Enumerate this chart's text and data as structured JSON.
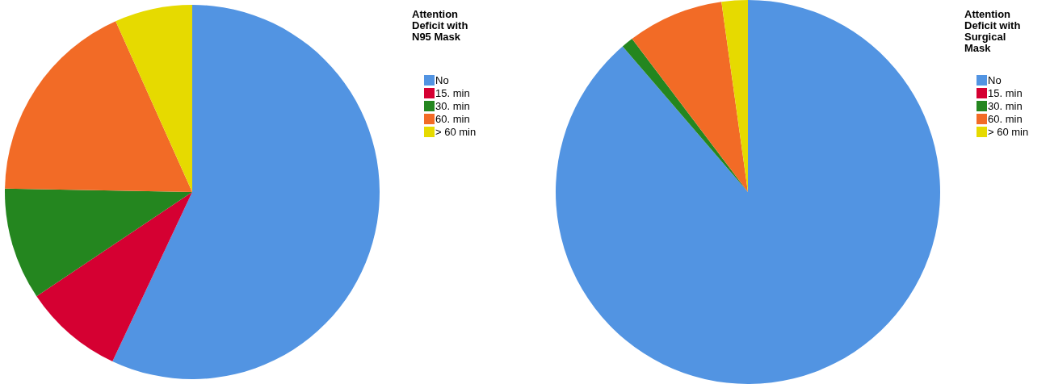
{
  "chart_data": [
    {
      "type": "pie",
      "legend_title": "Attention Deficit with N95 Mask",
      "legend": "top right",
      "categories": [
        "No",
        "15. min",
        "30. min",
        "60. min",
        "> 60 min"
      ],
      "values": [
        57,
        8.6,
        9.7,
        18,
        6.7
      ],
      "colors": [
        "#5294e2",
        "#d50032",
        "#24861f",
        "#f26b26",
        "#e6da00"
      ]
    },
    {
      "type": "pie",
      "legend_title": "Attention Deficit with Surgical Mask",
      "legend": "top right",
      "categories": [
        "No",
        "15. min",
        "30. min",
        "60. min",
        "> 60 min"
      ],
      "values": [
        88.7,
        0,
        1,
        8.1,
        2.2
      ],
      "colors": [
        "#5294e2",
        "#d50032",
        "#24861f",
        "#f26b26",
        "#e6da00"
      ]
    }
  ]
}
